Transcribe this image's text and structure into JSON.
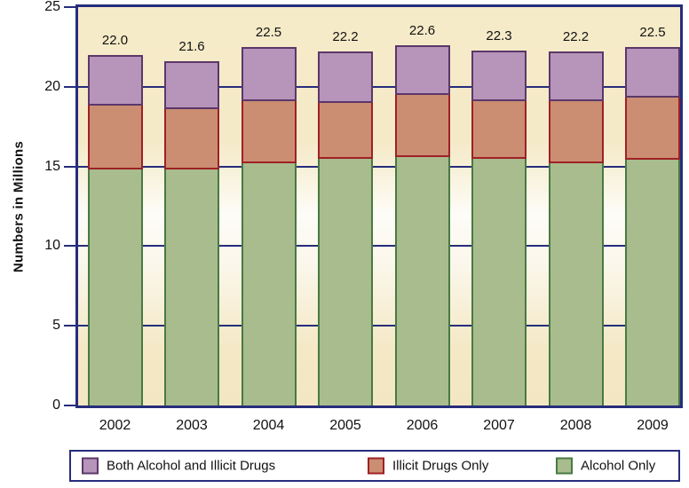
{
  "chart_data": {
    "type": "bar",
    "stacked": true,
    "title": "",
    "xlabel": "",
    "ylabel": "Numbers in Millions",
    "ylim": [
      0,
      25
    ],
    "yticks": [
      0,
      5,
      10,
      15,
      20,
      25
    ],
    "grid": true,
    "categories": [
      "2002",
      "2003",
      "2004",
      "2005",
      "2006",
      "2007",
      "2008",
      "2009"
    ],
    "series": [
      {
        "name": "Alcohol Only",
        "fill": "#a9bc8e",
        "border": "#477a41",
        "values": [
          14.8,
          14.8,
          15.2,
          15.5,
          15.6,
          15.5,
          15.2,
          15.4
        ]
      },
      {
        "name": "Illicit Drugs Only",
        "fill": "#cb8e72",
        "border": "#9f2025",
        "values": [
          4.0,
          3.8,
          3.9,
          3.5,
          3.9,
          3.6,
          3.9,
          3.9
        ]
      },
      {
        "name": "Both Alcohol and Illicit Drugs",
        "fill": "#b795bb",
        "border": "#5b3769",
        "values": [
          3.2,
          3.0,
          3.4,
          3.2,
          3.1,
          3.2,
          3.1,
          3.2
        ]
      }
    ],
    "totals": [
      "22.0",
      "21.6",
      "22.5",
      "22.2",
      "22.6",
      "22.3",
      "22.2",
      "22.5"
    ],
    "legend": [
      "Both Alcohol and Illicit Drugs",
      "Illicit Drugs Only",
      "Alcohol Only"
    ],
    "legend_position": "bottom"
  },
  "colors": {
    "axis": "#262d7c",
    "plot_bg": "#f6ebc8",
    "plot_bg_band": "#fdfcf7",
    "text": "#111111",
    "page_bg": "#ffffff",
    "legend_bg": "#ffffff"
  }
}
